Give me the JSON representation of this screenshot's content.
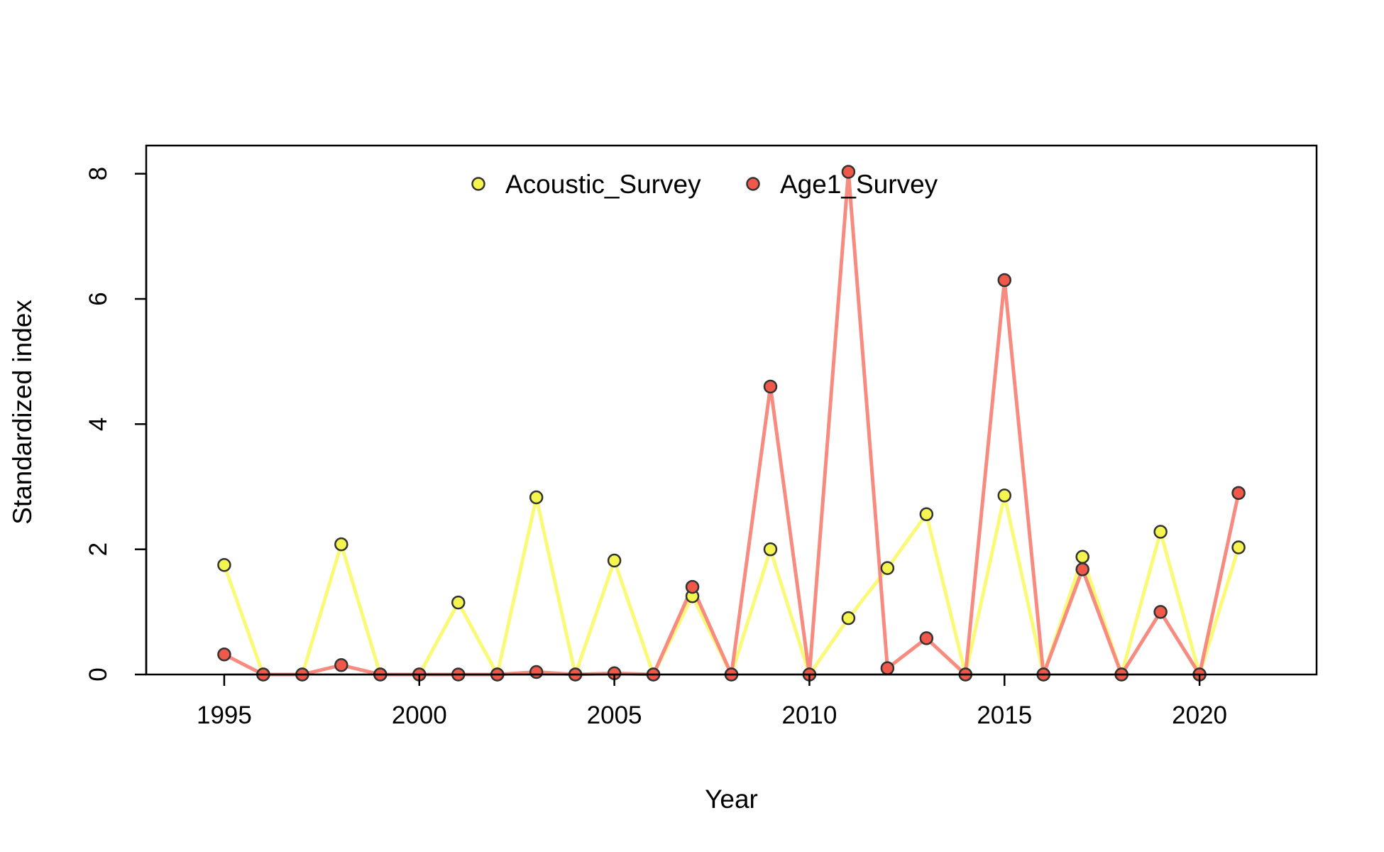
{
  "chart_data": {
    "type": "line",
    "title": "",
    "xlabel": "Year",
    "ylabel": "Standardized index",
    "xlim": [
      1993,
      2023
    ],
    "ylim": [
      0,
      8.45
    ],
    "x_ticks": [
      1995,
      2000,
      2005,
      2010,
      2015,
      2020
    ],
    "y_ticks": [
      0,
      2,
      4,
      6,
      8
    ],
    "grid": false,
    "legend_position": "top-center",
    "series": [
      {
        "name": "Acoustic_Survey",
        "line_color": "#fafa78",
        "point_color": "#f5f550",
        "x": [
          1995,
          1996,
          1997,
          1998,
          1999,
          2000,
          2001,
          2002,
          2003,
          2004,
          2005,
          2006,
          2007,
          2008,
          2009,
          2010,
          2011,
          2012,
          2013,
          2014,
          2015,
          2016,
          2017,
          2018,
          2019,
          2020,
          2021
        ],
        "y": [
          1.75,
          0,
          0,
          2.08,
          0,
          0,
          1.15,
          0,
          2.83,
          0,
          1.82,
          0,
          1.25,
          0,
          2.0,
          0,
          0.9,
          1.7,
          2.56,
          0,
          2.86,
          0,
          1.88,
          0,
          2.28,
          0,
          2.03
        ]
      },
      {
        "name": "Age1_Survey",
        "line_color": "#f88b80",
        "point_color": "#f0584a",
        "x": [
          1995,
          1996,
          1997,
          1998,
          1999,
          2000,
          2001,
          2002,
          2003,
          2004,
          2005,
          2006,
          2007,
          2008,
          2009,
          2010,
          2011,
          2012,
          2013,
          2014,
          2015,
          2016,
          2017,
          2018,
          2019,
          2020,
          2021
        ],
        "y": [
          0.32,
          0,
          0,
          0.15,
          0,
          0,
          0,
          0,
          0.04,
          0,
          0.02,
          0,
          1.4,
          0,
          4.6,
          0,
          8.03,
          0.1,
          0.58,
          0,
          6.3,
          0,
          1.68,
          0,
          1.0,
          0,
          2.9
        ]
      }
    ]
  }
}
